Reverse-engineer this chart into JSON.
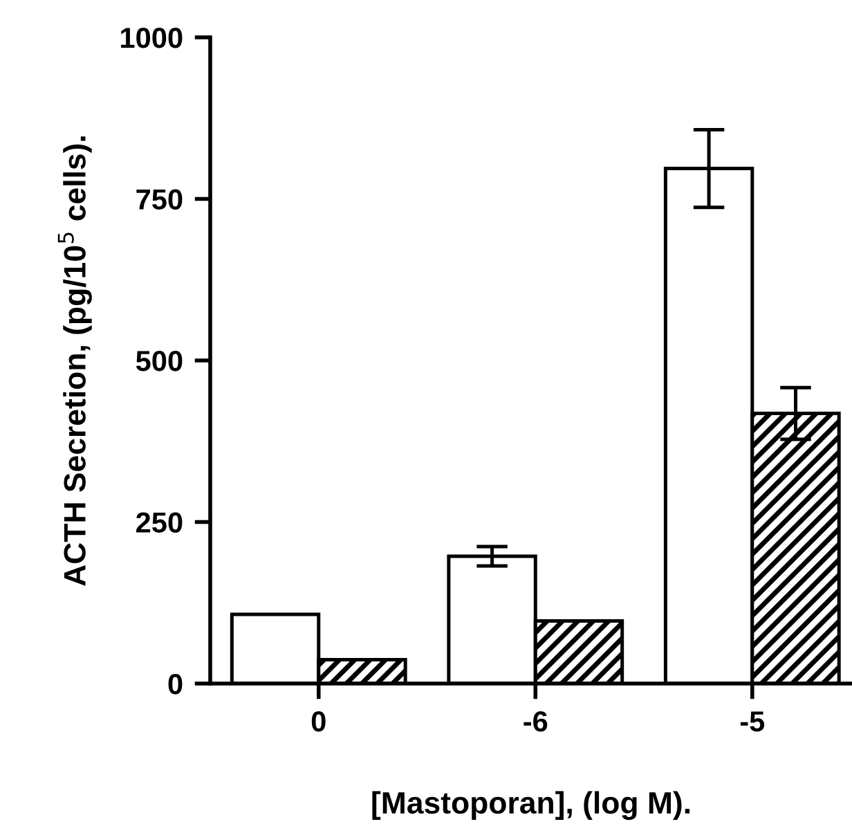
{
  "chart_data": {
    "type": "bar",
    "xlabel": "[Mastoporan], (log M).",
    "ylabel": "ACTH Secretion, (pg/10$^{5}$ cells).",
    "categories": [
      "0",
      "-6",
      "-5"
    ],
    "series": [
      {
        "color": "#ffffff",
        "values": [
          107,
          197,
          797
        ],
        "errors": [
          null,
          15,
          60
        ]
      },
      {
        "color": "#000000",
        "values": [
          37,
          97,
          418
        ],
        "errors": [
          null,
          null,
          40
        ]
      }
    ],
    "ylim": [
      0,
      1000
    ],
    "yticks": [
      0,
      250,
      500,
      750,
      1000
    ],
    "grid": false,
    "legend": false
  }
}
